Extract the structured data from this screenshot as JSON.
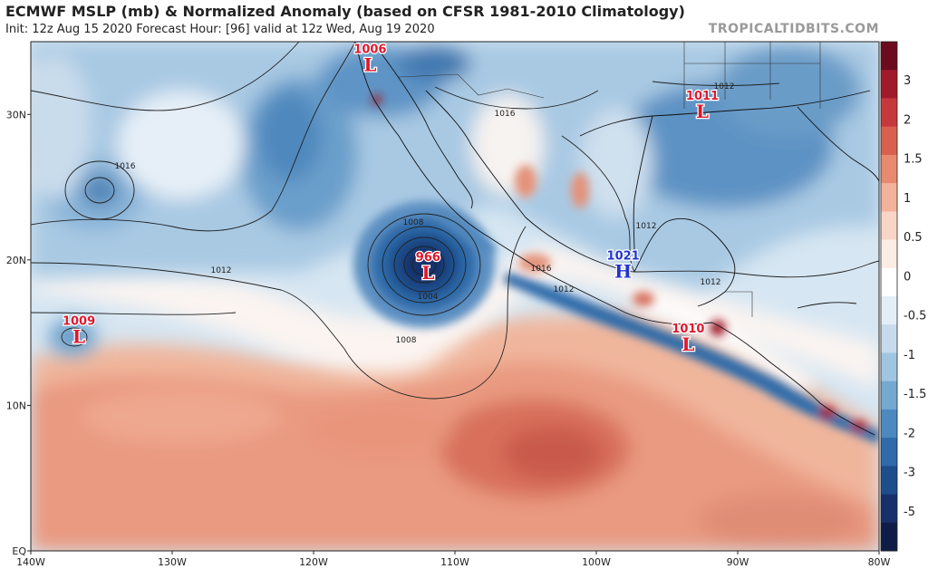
{
  "header": {
    "title": "ECMWF MSLP (mb) & Normalized Anomaly (based on CFSR 1981-2010 Climatology)",
    "subtitle": "Init: 12z Aug 15 2020   Forecast Hour: [96]   valid at 12z Wed, Aug 19 2020",
    "brand": "TROPICALTIDBITS.COM"
  },
  "axes": {
    "lon_ticks": [
      "140W",
      "130W",
      "120W",
      "110W",
      "100W",
      "90W",
      "80W"
    ],
    "lat_ticks": [
      "EQ",
      "10N",
      "20N",
      "30N"
    ],
    "lon_range": [
      -140,
      -80
    ],
    "lat_range": [
      0,
      35
    ]
  },
  "colorbar": {
    "ticks": [
      "3",
      "2",
      "1.5",
      "1",
      "0.5",
      "0",
      "-0.5",
      "-1",
      "-1.5",
      "-2",
      "-3",
      "-5"
    ],
    "colors": [
      "#6d0b1e",
      "#a01a2b",
      "#c6393b",
      "#d9604f",
      "#e88a70",
      "#f3b29b",
      "#f8d5c6",
      "#fbece4",
      "#ffffff",
      "#e4eef7",
      "#c7dbec",
      "#a0c5e1",
      "#74a9d0",
      "#4c89bf",
      "#2f6aa9",
      "#1e4d8c",
      "#17306b",
      "#101c48"
    ]
  },
  "systems": [
    {
      "type": "L",
      "pressure": "1006",
      "lon": -116,
      "lat": 33.6
    },
    {
      "type": "L",
      "pressure": "966",
      "lon": -111.9,
      "lat": 19.3
    },
    {
      "type": "L",
      "pressure": "1009",
      "lon": -136.6,
      "lat": 14.9
    },
    {
      "type": "H",
      "pressure": "1021",
      "lon": -98.1,
      "lat": 19.4
    },
    {
      "type": "L",
      "pressure": "1011",
      "lon": -92.5,
      "lat": 30.4
    },
    {
      "type": "L",
      "pressure": "1010",
      "lon": -93.5,
      "lat": 14.4
    }
  ],
  "isobar_labels": [
    "1016",
    "1016",
    "1012",
    "1012",
    "1008",
    "1008",
    "1004",
    "1012",
    "1016",
    "1012",
    "1012",
    "1012"
  ],
  "legend_colors": {
    "low": "#e0182d",
    "high": "#2233cc"
  }
}
